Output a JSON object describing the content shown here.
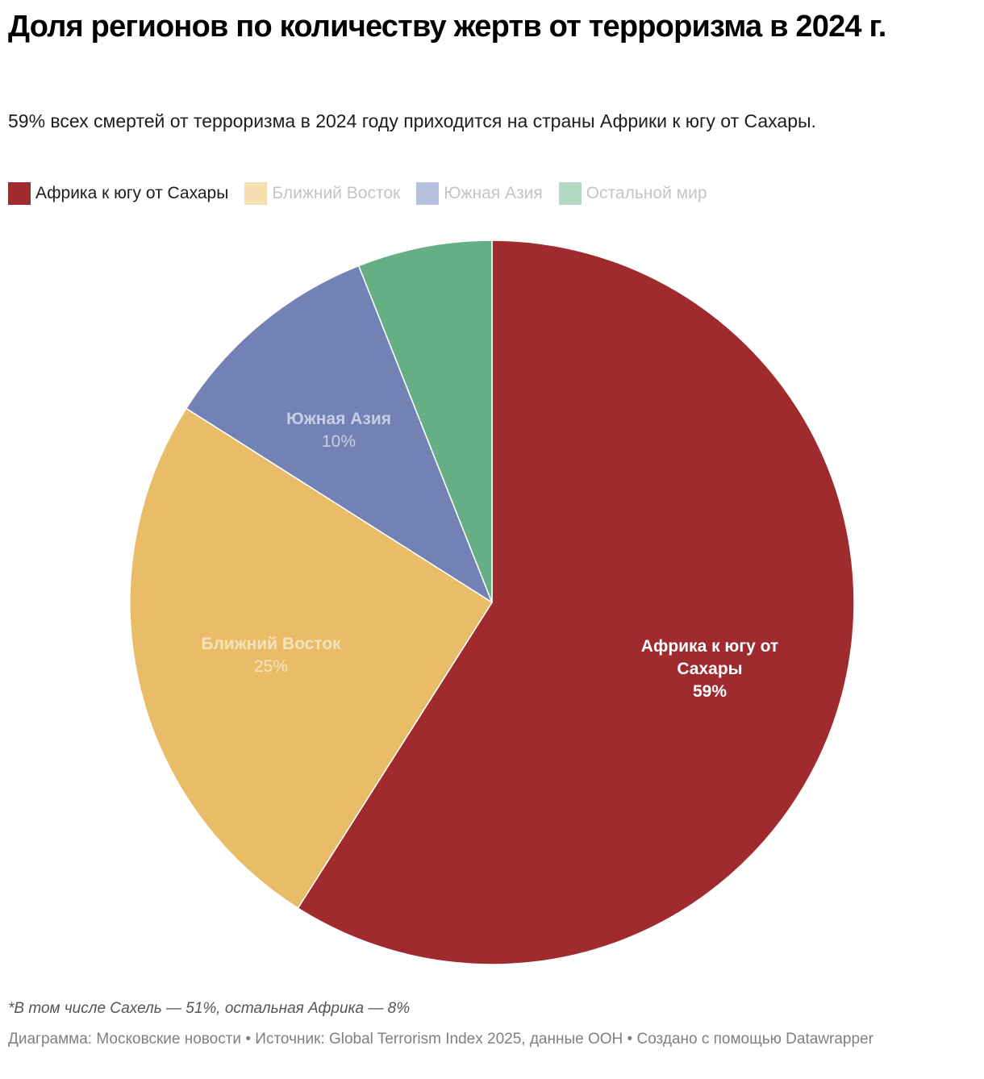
{
  "header": {
    "title": "Доля регионов по количеству жертв от терроризма в 2024 г.",
    "subtitle": "59% всех смертей от терроризма в 2024 году приходится на страны Африки к югу от Сахары."
  },
  "legend": {
    "items": [
      {
        "label": "Африка к югу от Сахары",
        "color": "#a02b2e",
        "text_color": "#1d1d1d"
      },
      {
        "label": "Ближний Восток",
        "color": "#f5deaf",
        "text_color": "#c4c4c4"
      },
      {
        "label": "Южная Азия",
        "color": "#b6c0dc",
        "text_color": "#c4c4c4"
      },
      {
        "label": "Остальной мир",
        "color": "#b2d9c2",
        "text_color": "#c4c4c4"
      }
    ]
  },
  "slices": [
    {
      "name": "Африка к югу от Сахары",
      "label_lines": [
        "Африка к югу от",
        "Сахары"
      ],
      "pct_label": "59%",
      "color": "#a02b2e",
      "label_color": "#ffffff",
      "label_weight": "bold"
    },
    {
      "name": "Ближний Восток",
      "label_lines": [
        "Ближний Восток"
      ],
      "pct_label": "25%",
      "color": "#e9bc68",
      "label_color": "#f6e2bd",
      "label_weight": "normal"
    },
    {
      "name": "Южная Азия",
      "label_lines": [
        "Южная Азия"
      ],
      "pct_label": "10%",
      "color": "#7282b5",
      "label_color": "#c8cfe4",
      "label_weight": "normal"
    },
    {
      "name": "Остальной мир",
      "label_lines": [],
      "pct_label": "",
      "color": "#66af85",
      "label_color": "#ffffff",
      "label_weight": "normal"
    }
  ],
  "chart_data": {
    "type": "pie",
    "title": "Доля регионов по количеству жертв от терроризма в 2024 г.",
    "subtitle": "59% всех смертей от терроризма в 2024 году приходится на страны Африки к югу от Сахары.",
    "categories": [
      "Африка к югу от Сахары",
      "Ближний Восток",
      "Южная Азия",
      "Остальной мир"
    ],
    "values": [
      59,
      25,
      10,
      6
    ],
    "unit": "%",
    "colors": [
      "#a02b2e",
      "#e9bc68",
      "#7282b5",
      "#66af85"
    ],
    "data_labels": [
      "Африка к югу от Сахары 59%",
      "Ближний Восток 25%",
      "Южная Азия 10%",
      ""
    ],
    "legend_position": "top",
    "start_angle": "12 o'clock, clockwise",
    "annotations": [
      "*В том числе Сахель — 51%, остальная Африка — 8%"
    ]
  },
  "notes": "*В том числе Сахель — 51%, остальная Африка — 8%",
  "footer": {
    "chart_credit_label": "Диаграмма:",
    "chart_credit": "Московские новости",
    "source_label": "Источник:",
    "source": "Global Terrorism Index 2025, данные ООН",
    "made_with_label": "Создано с помощью",
    "made_with": "Datawrapper",
    "separator": "•"
  }
}
